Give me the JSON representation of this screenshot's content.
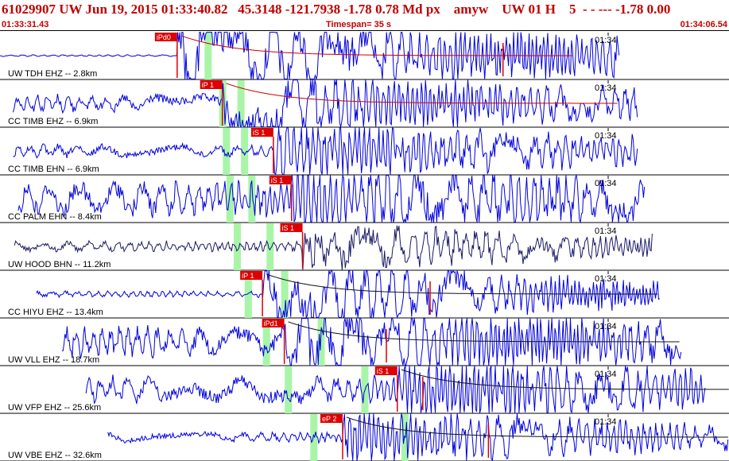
{
  "header": {
    "event_id": "61029907",
    "network": "UW",
    "datetime": "Jun 19, 2015 01:33:40.82",
    "latitude": "45.3148",
    "longitude": "-121.7938",
    "depth": "-1.78",
    "magnitude": "0.78",
    "mag_type": "Md",
    "flag": "px",
    "analyst": "amyw",
    "source": "UW 01 H",
    "count": "5",
    "dashes": "-  - --- ",
    "value1": "-1.78",
    "value2": "0.00"
  },
  "timebar": {
    "start": "01:33:31.43",
    "timespan_label": "Timespan=",
    "timespan_value": "35 s",
    "end": "01:34:06.54"
  },
  "colors": {
    "trace": "#0000dd",
    "trace_dark": "#1a1a66",
    "pick": "#dd0000",
    "window": "#a8f5a8",
    "coda": "#cc0000",
    "label": "#000000"
  },
  "traces": [
    {
      "label": "UW TDH EHZ -- 2.8km",
      "minute_label": "01:34",
      "pick_label": "iPd0",
      "pick_t": 0.243,
      "start_t": 0.0,
      "end_t": 0.85,
      "amp": 0.35,
      "burst_amp": 1.0,
      "windows": [
        0.285
      ],
      "coda": true,
      "coda_pick": 0.69,
      "dark": false,
      "flat_before": true
    },
    {
      "label": "CC TIMB EHZ -- 6.9km",
      "minute_label": "01:34",
      "pick_label": "iP 1",
      "pick_t": 0.305,
      "start_t": 0.018,
      "end_t": 0.875,
      "amp": 0.2,
      "burst_amp": 0.85,
      "windows": [
        0.305,
        0.33
      ],
      "coda": true,
      "coda_pick": 0,
      "dark": false,
      "flat_before": false
    },
    {
      "label": "CC TIMB EHN -- 6.9km",
      "minute_label": "01:34",
      "pick_label": "iS 1",
      "pick_t": 0.375,
      "start_t": 0.018,
      "end_t": 0.875,
      "amp": 0.15,
      "burst_amp": 0.75,
      "windows": [
        0.31,
        0.335
      ],
      "coda": false,
      "coda_pick": 0,
      "dark": false,
      "flat_before": false
    },
    {
      "label": "CC PALM EHN -- 8.4km",
      "minute_label": "01:34",
      "pick_label": "iS 1",
      "pick_t": 0.4,
      "start_t": 0.025,
      "end_t": 0.885,
      "amp": 0.4,
      "burst_amp": 0.8,
      "windows": [
        0.315,
        0.345
      ],
      "coda": false,
      "coda_pick": 0,
      "dark": false,
      "flat_before": false
    },
    {
      "label": "UW HOOD BHN -- 11.2km",
      "minute_label": "01:34",
      "pick_label": "iS 1",
      "pick_t": 0.415,
      "start_t": 0.02,
      "end_t": 0.895,
      "amp": 0.12,
      "burst_amp": 0.55,
      "windows": [
        0.325,
        0.37
      ],
      "coda": false,
      "coda_pick": 0,
      "dark": true,
      "flat_before": false
    },
    {
      "label": "CC HIYU EHZ -- 13.4km",
      "minute_label": "01:34",
      "pick_label": "iP 1",
      "pick_t": 0.36,
      "start_t": 0.05,
      "end_t": 0.905,
      "amp": 0.07,
      "burst_amp": 0.9,
      "windows": [
        0.34,
        0.39
      ],
      "coda": true,
      "coda_pick": 0.59,
      "dark": false,
      "flat_before": false
    },
    {
      "label": "UW VLL EHZ -- 18.7km",
      "minute_label": "01:34",
      "pick_label": "iPd1",
      "pick_t": 0.39,
      "start_t": 0.085,
      "end_t": 0.935,
      "amp": 0.35,
      "burst_amp": 0.85,
      "windows": [
        0.365,
        0.44
      ],
      "coda": true,
      "coda_pick": 0.53,
      "dark": false,
      "flat_before": false
    },
    {
      "label": "UW VFP EHZ -- 25.6km",
      "minute_label": "01:34",
      "pick_label": "iS 1",
      "pick_t": 0.545,
      "start_t": 0.118,
      "end_t": 0.968,
      "amp": 0.3,
      "burst_amp": 0.7,
      "windows": [
        0.395,
        0.5
      ],
      "coda": true,
      "coda_pick": 0.58,
      "dark": false,
      "flat_before": false
    },
    {
      "label": "UW VBE EHZ -- 32.6km",
      "minute_label": "01:34",
      "pick_label": "eP 2",
      "pick_t": 0.47,
      "start_t": 0.148,
      "end_t": 1.0,
      "amp": 0.12,
      "burst_amp": 0.7,
      "windows": [
        0.43,
        0.555
      ],
      "coda": true,
      "coda_pick": 0.67,
      "dark": false,
      "flat_before": false
    }
  ]
}
